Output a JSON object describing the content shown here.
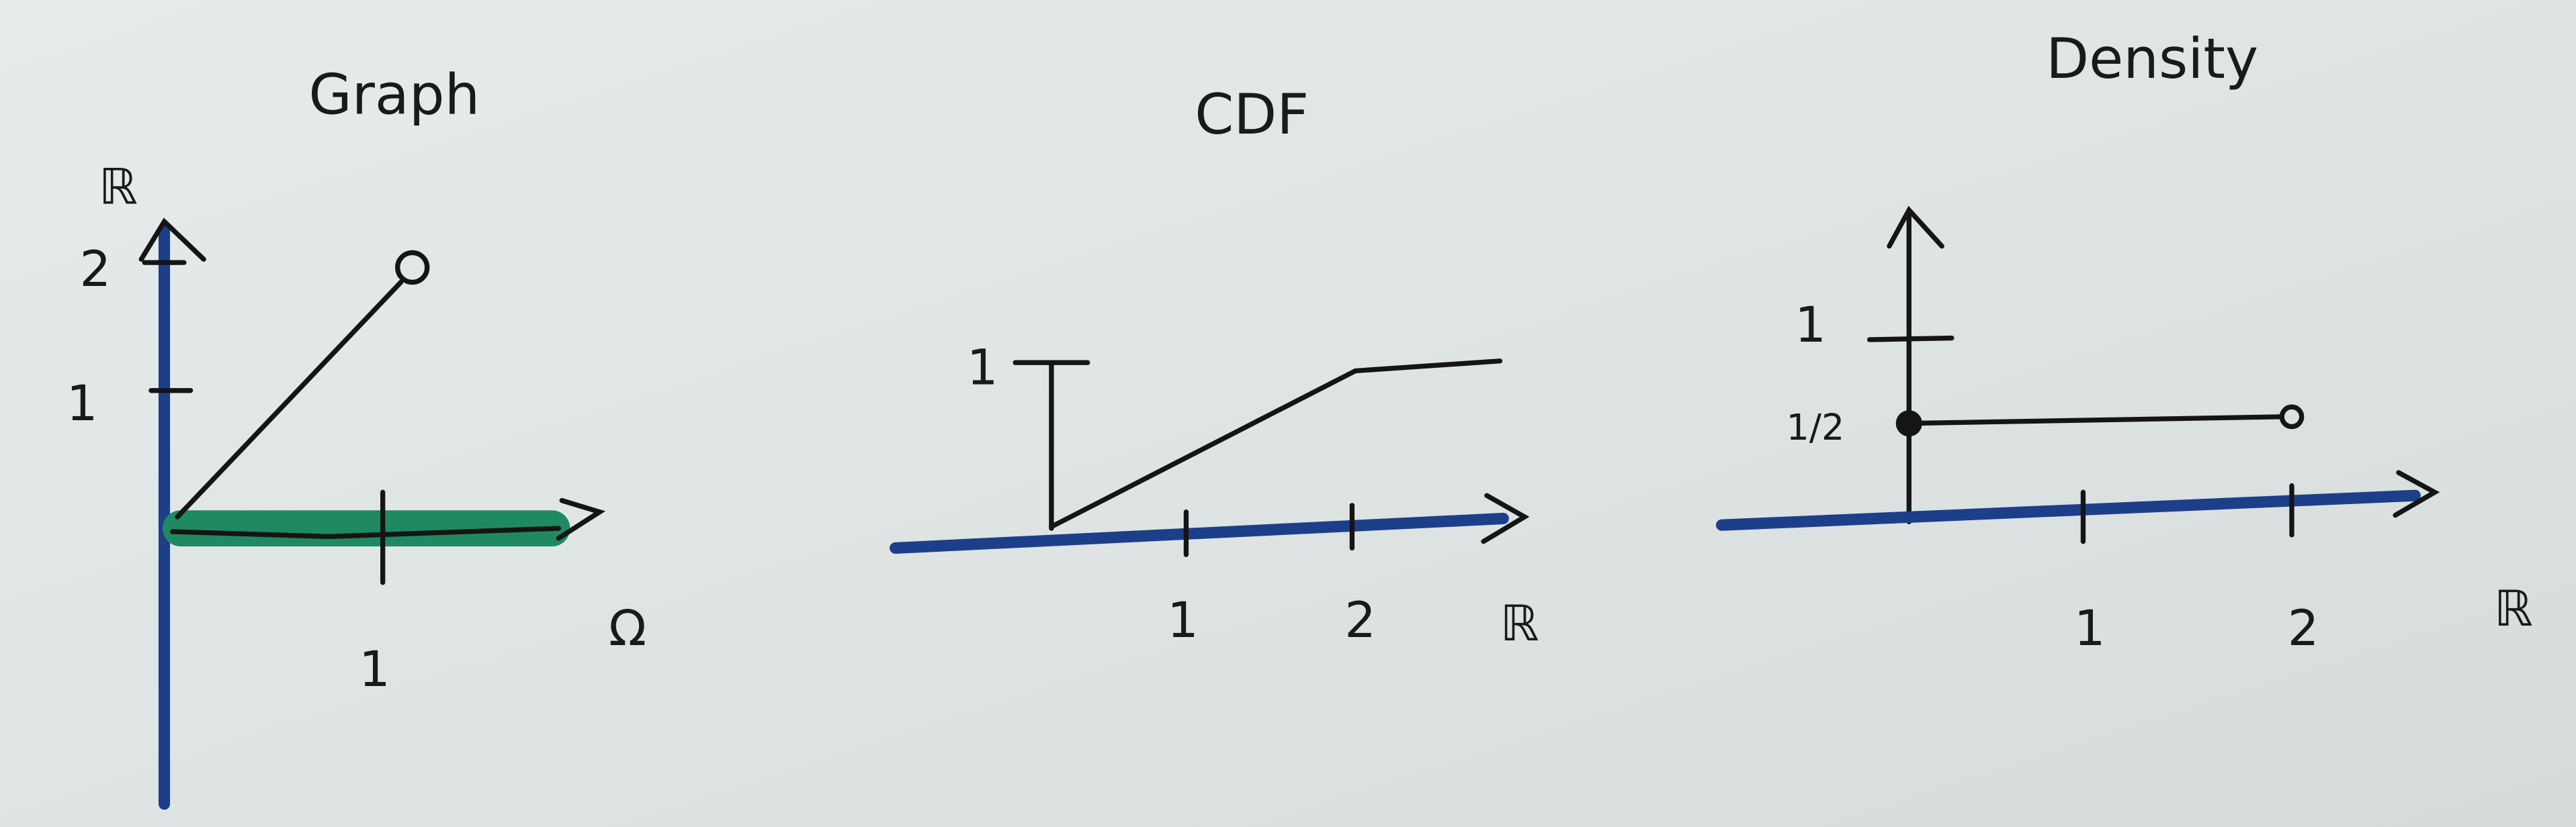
{
  "panels": [
    {
      "title": "Graph",
      "y_axis_label": "ℝ",
      "x_axis_label": "Ω",
      "y_ticks": [
        "1",
        "2"
      ],
      "x_ticks": [
        "1"
      ]
    },
    {
      "title": "CDF",
      "x_axis_label": "ℝ",
      "y_ticks": [
        "1"
      ],
      "x_ticks": [
        "1",
        "2"
      ]
    },
    {
      "title": "Density",
      "x_axis_label": "ℝ",
      "y_ticks": [
        "1",
        "1/2"
      ],
      "x_ticks": [
        "1",
        "2"
      ]
    }
  ]
}
